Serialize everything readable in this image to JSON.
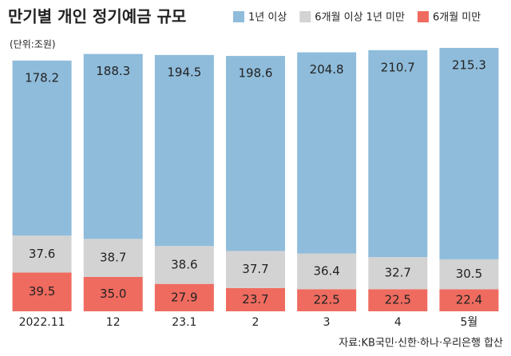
{
  "chart_data": {
    "type": "stacked-bar",
    "title": "만기별 개인 정기예금 규모",
    "subtitle": "(단위:조원)",
    "source": "자료:KB국민·신한·하나·우리은행 합산",
    "categories": [
      "2022.11",
      "12",
      "23.1",
      "2",
      "3",
      "4",
      "5월"
    ],
    "series": [
      {
        "name": "1년 이상",
        "color": "#8fbcdb",
        "values": [
          178.2,
          188.3,
          194.5,
          198.6,
          204.8,
          210.7,
          215.3
        ]
      },
      {
        "name": "6개월 이상 1년 미만",
        "color": "#d3d3d3",
        "values": [
          37.6,
          38.7,
          38.6,
          37.7,
          36.4,
          32.7,
          30.5
        ]
      },
      {
        "name": "6개월 미만",
        "color": "#ef6b5f",
        "values": [
          39.5,
          35.0,
          27.9,
          23.7,
          22.5,
          22.5,
          22.4
        ],
        "value_labels": [
          "39.5",
          "35.0",
          "27.9",
          "23.7",
          "22.5",
          "22.5",
          "22.4"
        ]
      }
    ]
  }
}
